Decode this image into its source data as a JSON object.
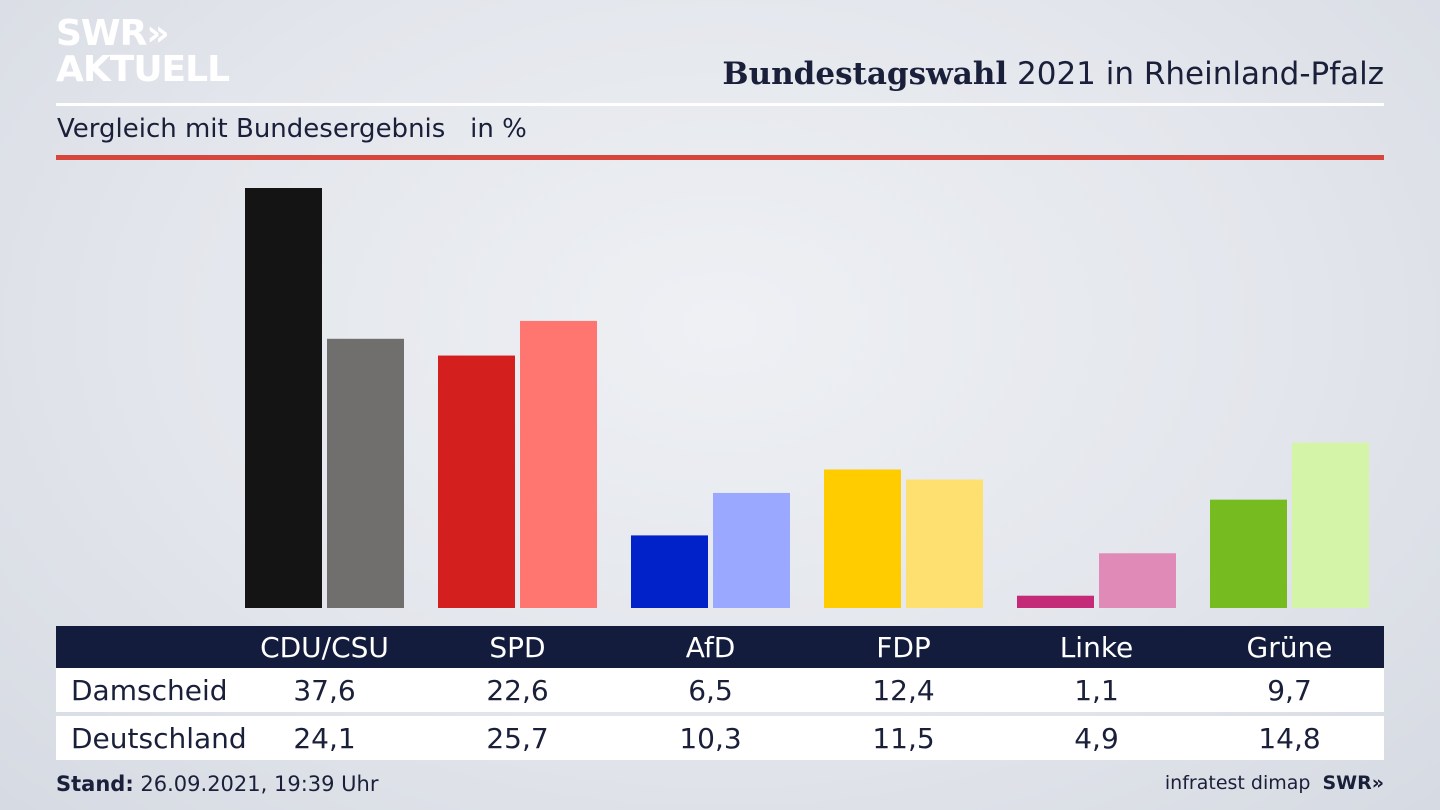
{
  "logo": {
    "line1": "SWR»",
    "line2": "AKTUELL"
  },
  "title": {
    "bold": "Bundestagswahl",
    "rest": " 2021 in Rheinland-Pfalz"
  },
  "subtitle": "Vergleich mit Bundesergebnis   in %",
  "chart_data": {
    "type": "bar",
    "categories": [
      "CDU/CSU",
      "SPD",
      "AfD",
      "FDP",
      "Linke",
      "Grüne"
    ],
    "series": [
      {
        "name": "Damscheid",
        "values": [
          37.6,
          22.6,
          6.5,
          12.4,
          1.1,
          9.7
        ],
        "colors": [
          "#141414",
          "#d41f1f",
          "#0022c8",
          "#ffcc00",
          "#c42a78",
          "#76bc21"
        ]
      },
      {
        "name": "Deutschland",
        "values": [
          24.1,
          25.7,
          10.3,
          11.5,
          4.9,
          14.8
        ],
        "colors": [
          "#706f6d",
          "#ff7670",
          "#9aa8ff",
          "#fde070",
          "#e08ab8",
          "#d4f5a8"
        ]
      }
    ],
    "ylim": [
      0,
      37.6
    ],
    "grid": false,
    "legend": "table-below"
  },
  "table": {
    "headers": [
      "CDU/CSU",
      "SPD",
      "AfD",
      "FDP",
      "Linke",
      "Grüne"
    ],
    "rows": [
      {
        "label": "Damscheid",
        "values": [
          "37,6",
          "22,6",
          "6,5",
          "12,4",
          "1,1",
          "9,7"
        ]
      },
      {
        "label": "Deutschland",
        "values": [
          "24,1",
          "25,7",
          "10,3",
          "11,5",
          "4,9",
          "14,8"
        ]
      }
    ]
  },
  "footer": {
    "stand_label": "Stand:",
    "stand_value": " 26.09.2021, 19:39 Uhr",
    "source": "infratest dimap",
    "brand": "SWR»"
  }
}
